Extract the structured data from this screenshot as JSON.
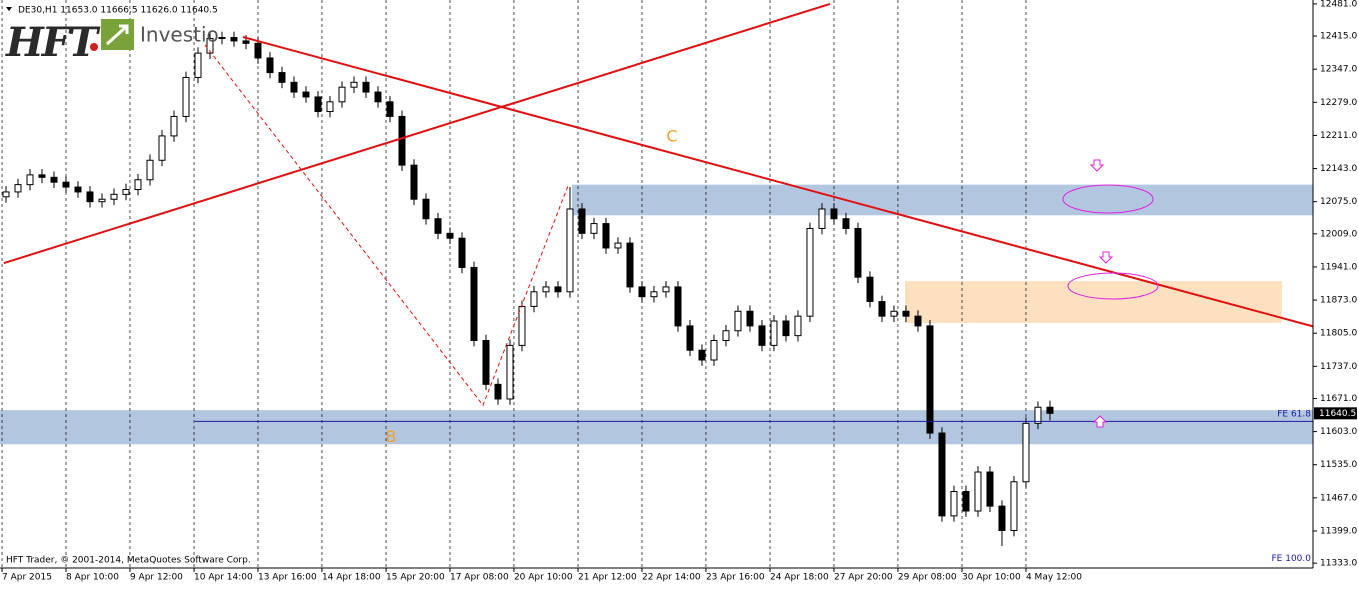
{
  "chart_data": {
    "type": "candlestick",
    "header": "DE30,H1  11653.0 11666.5 11626.0 11640.5",
    "logo": {
      "brand": "HFT",
      "name": "Investio"
    },
    "copyright": "HFT Trader, © 2001-2014, MetaQuotes Software Corp.",
    "x": [
      0,
      1,
      2,
      3,
      4,
      5,
      6,
      7,
      8,
      9,
      10,
      11,
      12,
      13,
      14,
      15,
      16,
      17,
      18,
      19,
      20,
      21,
      22,
      23,
      24,
      25,
      26,
      27,
      28,
      29,
      30,
      31,
      32,
      33,
      34,
      35,
      36,
      37,
      38,
      39,
      40,
      41,
      42,
      43,
      44,
      45,
      46,
      47,
      48,
      49,
      50,
      51,
      52,
      53,
      54,
      55,
      56,
      57,
      58,
      59,
      60,
      61,
      62,
      63,
      64,
      65,
      66,
      67,
      68,
      69,
      70,
      71,
      72,
      73,
      74,
      75,
      76,
      77,
      78,
      79,
      80,
      81,
      82,
      83,
      84,
      85,
      86,
      87
    ],
    "open": [
      12085,
      12095,
      12110,
      12130,
      12125,
      12115,
      12105,
      12095,
      12075,
      12080,
      12090,
      12100,
      12120,
      12160,
      12210,
      12250,
      12330,
      12380,
      12410,
      12412,
      12405,
      12400,
      12370,
      12340,
      12320,
      12300,
      12290,
      12260,
      12280,
      12310,
      12320,
      12300,
      12280,
      12250,
      12150,
      12080,
      12040,
      12010,
      12000,
      11940,
      11790,
      11700,
      11670,
      11780,
      11860,
      11890,
      11900,
      11890,
      12060,
      12010,
      12030,
      11980,
      11990,
      11900,
      11880,
      11890,
      11900,
      11820,
      11770,
      11750,
      11790,
      11810,
      11850,
      11820,
      11780,
      11830,
      11800,
      11840,
      12020,
      12060,
      12040,
      12020,
      11920,
      11870,
      11840,
      11850,
      11840,
      11820,
      11600,
      11430,
      11480,
      11440,
      11520,
      11450,
      11400,
      11500,
      11620,
      11653
    ],
    "high": [
      12107,
      12122,
      12142,
      12142,
      12137,
      12127,
      12117,
      12107,
      12092,
      12102,
      12112,
      12132,
      12172,
      12222,
      12262,
      12342,
      12392,
      12422,
      12424,
      12424,
      12417,
      12412,
      12382,
      12352,
      12332,
      12312,
      12302,
      12292,
      12322,
      12332,
      12332,
      12312,
      12292,
      12262,
      12162,
      12092,
      12052,
      12022,
      12012,
      11952,
      11802,
      11712,
      11792,
      11872,
      11902,
      11912,
      11912,
      12105,
      12072,
      12042,
      12042,
      12002,
      12002,
      11912,
      11902,
      11912,
      11912,
      11832,
      11782,
      11802,
      11822,
      11862,
      11862,
      11832,
      11842,
      11842,
      11852,
      12032,
      12072,
      12072,
      12052,
      12032,
      11932,
      11882,
      11862,
      11862,
      11852,
      11832,
      11612,
      11492,
      11492,
      11532,
      11532,
      11462,
      11512,
      11632,
      11665,
      11666.5
    ],
    "low": [
      12073,
      12083,
      12098,
      12113,
      12103,
      12093,
      12083,
      12063,
      12063,
      12068,
      12078,
      12088,
      12108,
      12148,
      12198,
      12238,
      12318,
      12368,
      12398,
      12393,
      12388,
      12358,
      12328,
      12308,
      12288,
      12278,
      12248,
      12248,
      12268,
      12298,
      12288,
      12268,
      12238,
      12138,
      12068,
      12028,
      11998,
      11988,
      11928,
      11778,
      11688,
      11658,
      11658,
      11768,
      11848,
      11878,
      11878,
      11878,
      11998,
      11998,
      11968,
      11968,
      11888,
      11868,
      11868,
      11878,
      11808,
      11758,
      11738,
      11738,
      11778,
      11798,
      11808,
      11768,
      11768,
      11788,
      11788,
      11828,
      12008,
      12028,
      12008,
      11908,
      11858,
      11828,
      11828,
      11828,
      11808,
      11588,
      11418,
      11418,
      11428,
      11428,
      11438,
      11368,
      11388,
      11488,
      11608,
      11626
    ],
    "close": [
      12095,
      12110,
      12130,
      12125,
      12115,
      12105,
      12095,
      12075,
      12080,
      12090,
      12100,
      12120,
      12160,
      12210,
      12250,
      12330,
      12380,
      12410,
      12412,
      12405,
      12400,
      12370,
      12340,
      12320,
      12300,
      12290,
      12260,
      12280,
      12310,
      12320,
      12300,
      12280,
      12250,
      12150,
      12080,
      12040,
      12010,
      12000,
      11940,
      11790,
      11700,
      11670,
      11780,
      11860,
      11890,
      11900,
      11890,
      12060,
      12010,
      12030,
      11980,
      11990,
      11900,
      11880,
      11890,
      11900,
      11820,
      11770,
      11750,
      11790,
      11810,
      11850,
      11820,
      11780,
      11830,
      11800,
      11840,
      12020,
      12060,
      12040,
      12020,
      11920,
      11870,
      11840,
      11850,
      11840,
      11820,
      11600,
      11430,
      11480,
      11440,
      11520,
      11450,
      11400,
      11500,
      11620,
      11653,
      11640.5
    ],
    "xlim": [
      -0.5,
      108.92
    ],
    "ylim": [
      11323,
      12489
    ],
    "xticks": [
      {
        "value": -0.33,
        "label": "7 Apr 2015"
      },
      {
        "value": 5,
        "label": "8 Apr 10:00"
      },
      {
        "value": 10.33,
        "label": "9 Apr 12:00"
      },
      {
        "value": 15.67,
        "label": "10 Apr 14:00"
      },
      {
        "value": 21,
        "label": "13 Apr 16:00"
      },
      {
        "value": 26.33,
        "label": "14 Apr 18:00"
      },
      {
        "value": 31.67,
        "label": "15 Apr 20:00"
      },
      {
        "value": 37,
        "label": "17 Apr 08:00"
      },
      {
        "value": 42.33,
        "label": "20 Apr 10:00"
      },
      {
        "value": 47.67,
        "label": "21 Apr 12:00"
      },
      {
        "value": 53,
        "label": "22 Apr 14:00"
      },
      {
        "value": 58.33,
        "label": "23 Apr 16:00"
      },
      {
        "value": 63.67,
        "label": "24 Apr 18:00"
      },
      {
        "value": 69,
        "label": "27 Apr 20:00"
      },
      {
        "value": 74.33,
        "label": "29 Apr 08:00"
      },
      {
        "value": 79.67,
        "label": "30 Apr 10:00"
      },
      {
        "value": 85,
        "label": "4 May 12:00"
      }
    ],
    "yticks": [
      {
        "value": 12481,
        "label": "12481.0"
      },
      {
        "value": 12415,
        "label": "12415.0"
      },
      {
        "value": 12347,
        "label": "12347.0"
      },
      {
        "value": 12279,
        "label": "12279.0"
      },
      {
        "value": 12211,
        "label": "12211.0"
      },
      {
        "value": 12143,
        "label": "12143.0"
      },
      {
        "value": 12075,
        "label": "12075.0"
      },
      {
        "value": 12009,
        "label": "12009.0"
      },
      {
        "value": 11941,
        "label": "11941.0"
      },
      {
        "value": 11873,
        "label": "11873.0"
      },
      {
        "value": 11805,
        "label": "11805.0"
      },
      {
        "value": 11737,
        "label": "11737.0"
      },
      {
        "value": 11671,
        "label": "11671.0"
      },
      {
        "value": 11603,
        "label": "11603.0"
      },
      {
        "value": 11535,
        "label": "11535.0"
      },
      {
        "value": 11467,
        "label": "11467.0"
      },
      {
        "value": 11399,
        "label": "11399.0"
      },
      {
        "value": 11333,
        "label": "11333.0"
      }
    ],
    "grid": "x",
    "zones": [
      {
        "x": [
          47.17,
          108.92
        ],
        "y": [
          12047,
          12110
        ],
        "color": "#b3c6e0"
      },
      {
        "x": [
          -0.5,
          108.92
        ],
        "y": [
          11577,
          11647
        ],
        "color": "#b3c6e0"
      },
      {
        "x": [
          74.92,
          106.33
        ],
        "y": [
          11826,
          11912
        ],
        "color": "#fde0c0"
      }
    ],
    "lines": [
      {
        "x": [
          -0.17,
          68.67
        ],
        "y": [
          11949,
          12481
        ],
        "color": "#e01010",
        "width": 2,
        "dashed": false
      },
      {
        "x": [
          19.75,
          108.92
        ],
        "y": [
          12413,
          11819
        ],
        "color": "#e01010",
        "width": 2,
        "dashed": false
      },
      {
        "x": [
          16.58,
          39.75,
          46.83
        ],
        "y": [
          12397,
          11657,
          12107
        ],
        "color": "#e01010",
        "width": 1,
        "dashed": true
      },
      {
        "x": [
          15.75,
          108.92
        ],
        "y": [
          11624,
          11624
        ],
        "color": "#1a1aa0",
        "width": 1,
        "dashed": false
      }
    ],
    "annotations": [
      {
        "text": "C",
        "x": 55.5,
        "y": 12208,
        "color": "#f0a030"
      },
      {
        "text": "B",
        "x": 32.08,
        "y": 11591,
        "color": "#f0a030"
      }
    ],
    "fib_labels": [
      {
        "text": "FE 61.8",
        "y": 11639
      },
      {
        "text": "FE 100.0",
        "y": 11343
      }
    ]
  }
}
